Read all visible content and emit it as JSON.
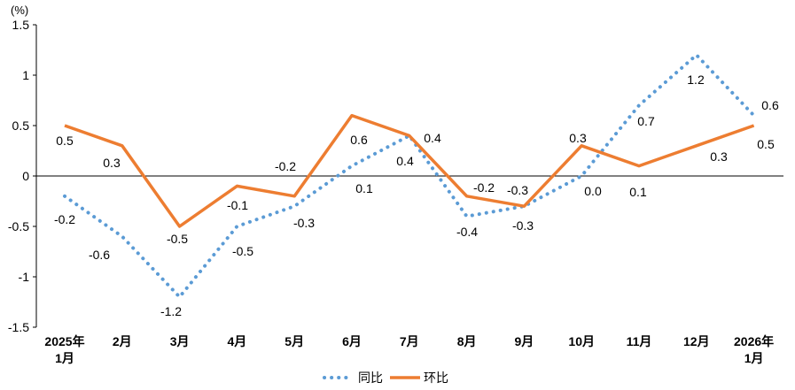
{
  "chart_data": {
    "type": "line",
    "ylabel": "(%)",
    "ylim": [
      -1.5,
      1.5
    ],
    "yticks": [
      "1.5",
      "1",
      "0.5",
      "0",
      "-0.5",
      "-1",
      "-1.5"
    ],
    "ytick_values": [
      1.5,
      1,
      0.5,
      0,
      -0.5,
      -1,
      -1.5
    ],
    "grid": false,
    "legend_position": "bottom",
    "categories": [
      [
        "2025年",
        "1月"
      ],
      [
        "2月"
      ],
      [
        "3月"
      ],
      [
        "4月"
      ],
      [
        "5月"
      ],
      [
        "6月"
      ],
      [
        "7月"
      ],
      [
        "8月"
      ],
      [
        "9月"
      ],
      [
        "10月"
      ],
      [
        "11月"
      ],
      [
        "12月"
      ],
      [
        "2026年",
        "1月"
      ]
    ],
    "series": [
      {
        "name": "同比",
        "color": "#5B9BD5",
        "style": "dotted",
        "values": [
          -0.2,
          -0.6,
          -1.2,
          -0.5,
          -0.3,
          0.1,
          0.4,
          -0.4,
          -0.3,
          0.0,
          0.7,
          1.2,
          0.6
        ],
        "labels": [
          "-0.2",
          "-0.6",
          "-1.2",
          "-0.5",
          "-0.3",
          "0.1",
          "0.4",
          "-0.4",
          "-0.3",
          "0.0",
          "0.7",
          "1.2",
          "0.6"
        ]
      },
      {
        "name": "环比",
        "color": "#ED7D31",
        "style": "solid",
        "values": [
          0.5,
          0.3,
          -0.5,
          -0.1,
          -0.2,
          0.6,
          0.4,
          -0.2,
          -0.3,
          0.3,
          0.1,
          0.3,
          0.5
        ],
        "labels": [
          "0.5",
          "0.3",
          "-0.5",
          "-0.1",
          "-0.2",
          "0.6",
          "0.4",
          "-0.2",
          "-0.3",
          "0.3",
          "0.1",
          "0.3",
          "0.5"
        ]
      }
    ]
  }
}
